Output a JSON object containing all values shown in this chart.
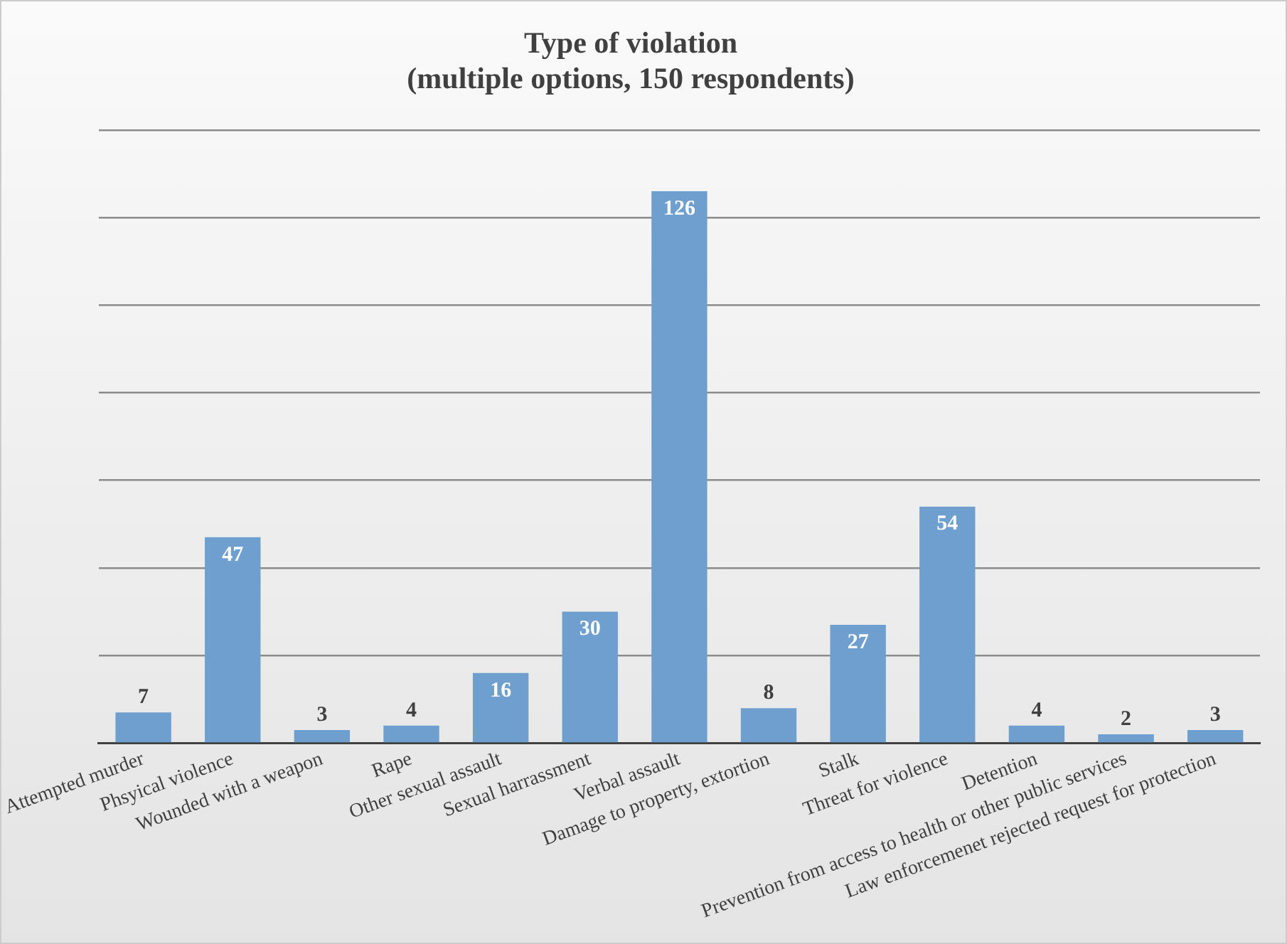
{
  "chart_data": {
    "type": "bar",
    "title": "Type of violation\n(multiple options, 150 respondents)",
    "categories": [
      "Attempted murder",
      "Phsyical violence",
      "Wounded with a weapon",
      "Rape",
      "Other sexual assault",
      "Sexual harrassment",
      "Verbal assault",
      "Damage to property, extortion",
      "Stalk",
      "Threat for violence",
      "Detention",
      "Prevention from access to health or other public services",
      "Law enforcemenet rejected request for protection"
    ],
    "values": [
      7,
      47,
      3,
      4,
      16,
      30,
      126,
      8,
      27,
      54,
      4,
      2,
      3
    ],
    "color": "#6f9fcf",
    "tick_labels": "x",
    "grid": "y",
    "data_labels": true,
    "legend": false
  }
}
